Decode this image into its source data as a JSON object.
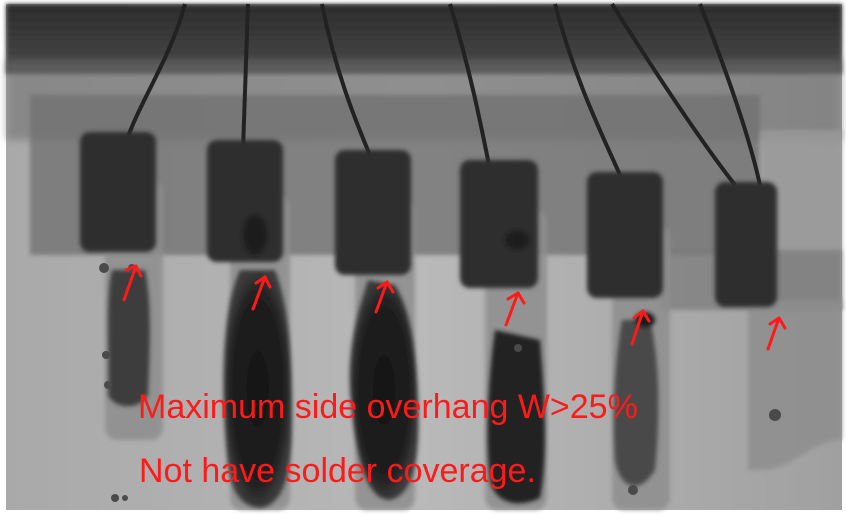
{
  "image": {
    "kind": "x-ray inspection photograph",
    "subject": "row of six component leads soldered to pads",
    "palette": {
      "background_light": "#b8b8b8",
      "background_dark": "#5a5a5a",
      "solder_dark": "#1f1f1f",
      "annotation": "#ff1a1a"
    }
  },
  "annotation": {
    "line1": "Maximum side overhang W>25%",
    "line2": "Not have solder coverage.",
    "arrow_count": 6,
    "arrow_icon": "arrow-up-left-icon"
  }
}
